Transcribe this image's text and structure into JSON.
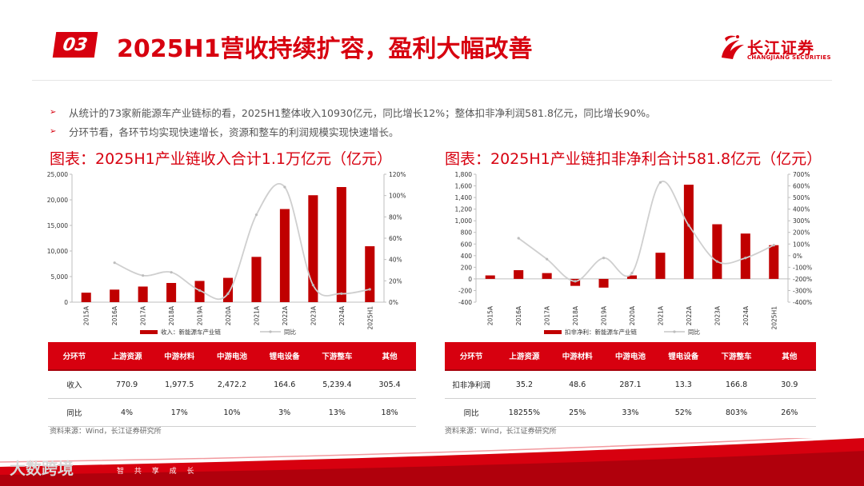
{
  "header": {
    "section_no": "03",
    "title": "2025H1营收持续扩容，盈利大幅改善",
    "logo_cn": "长江证券",
    "logo_en": "CHANGJIANG SECURITIES"
  },
  "bullets": [
    "从统计的73家新能源车产业链标的看，2025H1整体收入10930亿元，同比增长12%；整体扣非净利润581.8亿元，同比增长90%。",
    "分环节看，各环节均实现快速增长，资源和整车的利润规模实现快速增长。"
  ],
  "chart_data": [
    {
      "type": "bar",
      "title": "图表：2025H1产业链收入合计1.1万亿元（亿元）",
      "categories": [
        "2015A",
        "2016A",
        "2017A",
        "2018A",
        "2019A",
        "2020A",
        "2021A",
        "2022A",
        "2023A",
        "2024A",
        "2025H1"
      ],
      "series": [
        {
          "name": "收入：新能源车产业链",
          "type": "bar",
          "axis": "left",
          "values": [
            1850,
            2450,
            3050,
            3750,
            4150,
            4750,
            8850,
            18200,
            20900,
            22500,
            10930
          ]
        },
        {
          "name": "同比",
          "type": "line",
          "axis": "right",
          "values": [
            null,
            37,
            25,
            28,
            11,
            8,
            82,
            108,
            16,
            8,
            12
          ]
        }
      ],
      "ylim_left": [
        0,
        25000
      ],
      "yticks_left": [
        "0",
        "5,000",
        "10,000",
        "15,000",
        "20,000",
        "25,000"
      ],
      "ylim_right": [
        0,
        120
      ],
      "yticks_right": [
        "0%",
        "20%",
        "40%",
        "60%",
        "80%",
        "100%",
        "120%"
      ],
      "legend_position": "bottom",
      "colors": {
        "bar": "#c00000",
        "line": "#cfcfcf"
      },
      "legend": [
        "收入：新能源车产业链",
        "同比"
      ]
    },
    {
      "type": "bar",
      "title": "图表：2025H1产业链扣非净利合计581.8亿元（亿元）",
      "categories": [
        "2015A",
        "2016A",
        "2017A",
        "2018A",
        "2019A",
        "2020A",
        "2021A",
        "2022A",
        "2023A",
        "2024A",
        "2025H1"
      ],
      "series": [
        {
          "name": "扣非净利：新能源车产业链",
          "type": "bar",
          "axis": "left",
          "values": [
            60,
            150,
            100,
            -120,
            -150,
            60,
            450,
            1620,
            940,
            780,
            580
          ]
        },
        {
          "name": "同比",
          "type": "line",
          "axis": "right",
          "values": [
            null,
            150,
            -30,
            -220,
            -20,
            -150,
            630,
            260,
            -50,
            -20,
            90
          ]
        }
      ],
      "ylim_left": [
        -400,
        1800
      ],
      "yticks_left": [
        "-400",
        "-200",
        "0",
        "200",
        "400",
        "600",
        "800",
        "1,000",
        "1,200",
        "1,400",
        "1,600",
        "1,800"
      ],
      "ylim_right": [
        -400,
        700
      ],
      "yticks_right": [
        "-400%",
        "-300%",
        "-200%",
        "-100%",
        "0%",
        "100%",
        "200%",
        "300%",
        "400%",
        "500%",
        "600%",
        "700%"
      ],
      "legend_position": "bottom",
      "colors": {
        "bar": "#c00000",
        "line": "#cfcfcf"
      },
      "legend": [
        "扣非净利：新能源车产业链",
        "同比"
      ]
    }
  ],
  "tables": {
    "revenue": {
      "headers": [
        "分环节",
        "上游资源",
        "中游材料",
        "中游电池",
        "锂电设备",
        "下游整车",
        "其他"
      ],
      "rows": [
        [
          "收入",
          "770.9",
          "1,977.5",
          "2,472.2",
          "164.6",
          "5,239.4",
          "305.4"
        ],
        [
          "同比",
          "4%",
          "17%",
          "10%",
          "3%",
          "13%",
          "18%"
        ]
      ]
    },
    "profit": {
      "headers": [
        "分环节",
        "上游资源",
        "中游材料",
        "中游电池",
        "锂电设备",
        "下游整车",
        "其他"
      ],
      "rows": [
        [
          "扣非净利润",
          "35.2",
          "48.6",
          "287.1",
          "13.3",
          "166.8",
          "30.9"
        ],
        [
          "同比",
          "18255%",
          "25%",
          "33%",
          "52%",
          "803%",
          "26%"
        ]
      ]
    }
  },
  "source_left": "资料来源：Wind，长江证券研究所",
  "source_right": "资料来源：Wind，长江证券研究所",
  "footer": {
    "watermark": "大数跨境",
    "slogan": "智 共 享 成 长"
  }
}
